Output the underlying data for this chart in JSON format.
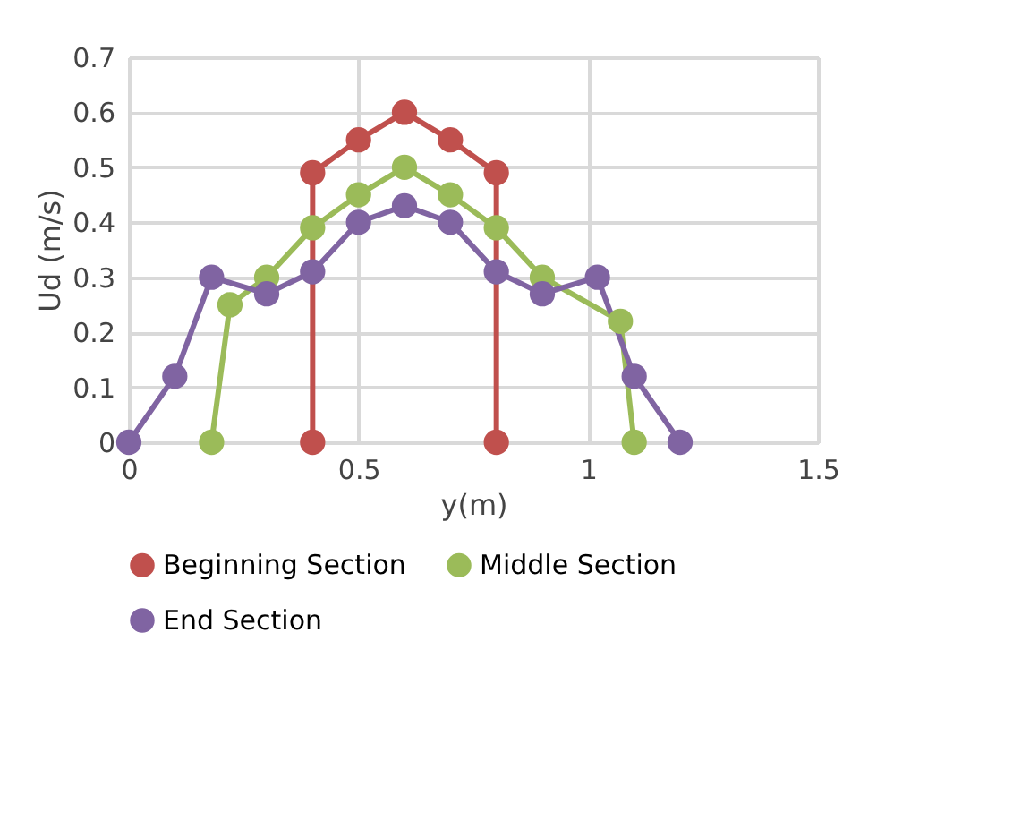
{
  "chart_data": {
    "type": "line",
    "xlabel": "y(m)",
    "ylabel": "Ud (m/s)",
    "xlim": [
      0,
      1.5
    ],
    "xticks": [
      0,
      0.5,
      1,
      1.5
    ],
    "ylim": [
      0,
      0.7
    ],
    "yticks": [
      0,
      0.1,
      0.2,
      0.3,
      0.4,
      0.5,
      0.6,
      0.7
    ],
    "grid": true,
    "legend": "bottom",
    "marker": "circle",
    "line_style": "solid",
    "series": [
      {
        "name": "Beginning Section",
        "color": "#c0504d",
        "x": [
          0.4,
          0.4,
          0.5,
          0.6,
          0.7,
          0.8,
          0.8
        ],
        "values": [
          0,
          0.49,
          0.55,
          0.6,
          0.55,
          0.49,
          0
        ]
      },
      {
        "name": "Middle Section",
        "color": "#9bbb59",
        "x": [
          0.18,
          0.22,
          0.3,
          0.4,
          0.5,
          0.6,
          0.7,
          0.8,
          0.9,
          1.07,
          1.1
        ],
        "values": [
          0,
          0.25,
          0.3,
          0.39,
          0.45,
          0.5,
          0.45,
          0.39,
          0.3,
          0.22,
          0
        ]
      },
      {
        "name": "End Section",
        "color": "#8064a2",
        "x": [
          0,
          0.1,
          0.18,
          0.3,
          0.4,
          0.5,
          0.6,
          0.7,
          0.8,
          0.9,
          1.02,
          1.1,
          1.2
        ],
        "values": [
          0,
          0.12,
          0.3,
          0.27,
          0.31,
          0.4,
          0.43,
          0.4,
          0.31,
          0.27,
          0.3,
          0.12,
          0
        ]
      }
    ]
  }
}
